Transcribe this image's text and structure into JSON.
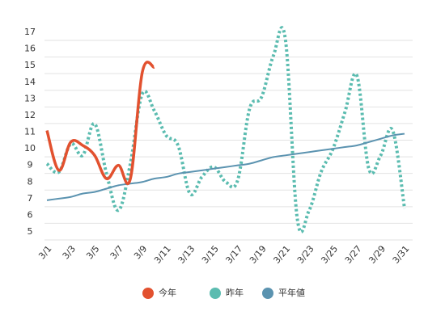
{
  "chart_data": {
    "type": "line",
    "categories": [
      "3/1",
      null,
      "3/3",
      null,
      "3/5",
      null,
      "3/7",
      null,
      "3/9",
      null,
      "3/11",
      null,
      "3/13",
      null,
      "3/15",
      null,
      "3/17",
      null,
      "3/19",
      null,
      "3/21",
      null,
      "3/23",
      null,
      "3/25",
      null,
      "3/27",
      null,
      "3/29",
      null,
      "3/31"
    ],
    "series": [
      {
        "name": "今年",
        "color": "#e2512f",
        "dashed": false,
        "values": [
          11.1,
          8.7,
          10.4,
          10.2,
          9.6,
          8.2,
          9.0,
          8.2,
          14.6,
          14.9,
          null,
          null,
          null,
          null,
          null,
          null,
          null,
          null,
          null,
          null,
          null,
          null,
          null,
          null,
          null,
          null,
          null,
          null,
          null,
          null,
          null
        ]
      },
      {
        "name": "昨年",
        "color": "#5bbcb0",
        "dashed": true,
        "values": [
          9.1,
          8.6,
          10.3,
          9.6,
          11.5,
          8.5,
          6.3,
          9.1,
          13.3,
          12.3,
          10.8,
          10.2,
          7.3,
          8.3,
          8.9,
          8.0,
          8.1,
          12.4,
          13.1,
          15.6,
          16.6,
          5.8,
          6.3,
          8.6,
          10.0,
          12.2,
          14.4,
          8.8,
          9.6,
          11.1,
          6.4
        ]
      },
      {
        "name": "平年値",
        "color": "#5b93b0",
        "dashed": false,
        "values": [
          6.9,
          7.0,
          7.1,
          7.3,
          7.4,
          7.6,
          7.8,
          7.9,
          8.0,
          8.2,
          8.3,
          8.5,
          8.6,
          8.7,
          8.8,
          8.9,
          9.0,
          9.1,
          9.3,
          9.5,
          9.6,
          9.7,
          9.8,
          9.9,
          10.0,
          10.1,
          10.2,
          10.4,
          10.6,
          10.8,
          10.9
        ]
      }
    ],
    "ylim": [
      5,
      17
    ],
    "yticks": [
      5,
      6,
      7,
      8,
      9,
      10,
      11,
      12,
      13,
      14,
      15,
      16,
      17
    ],
    "grid": true,
    "legend": "bottom"
  }
}
